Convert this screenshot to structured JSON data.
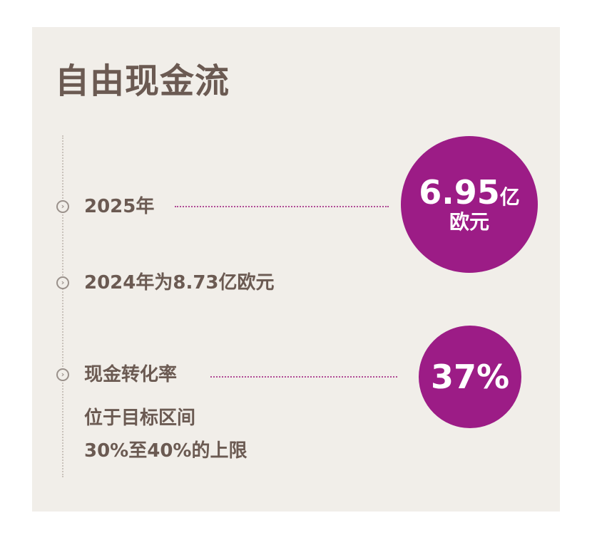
{
  "title": "自由现金流",
  "accent_color": "#9c1c86",
  "items": [
    {
      "label": "2025年",
      "icon": "chevron-right-circle-icon"
    },
    {
      "label": "2024年为8.73亿欧元",
      "icon": "chevron-right-circle-icon"
    },
    {
      "label": "现金转化率",
      "icon": "chevron-right-circle-icon",
      "sub_lines": [
        "位于目标区间",
        "30%至40%的上限"
      ]
    }
  ],
  "badges": {
    "fcf_value": "6.95",
    "fcf_unit": "亿",
    "fcf_currency": "欧元",
    "conversion_rate": "37%"
  }
}
